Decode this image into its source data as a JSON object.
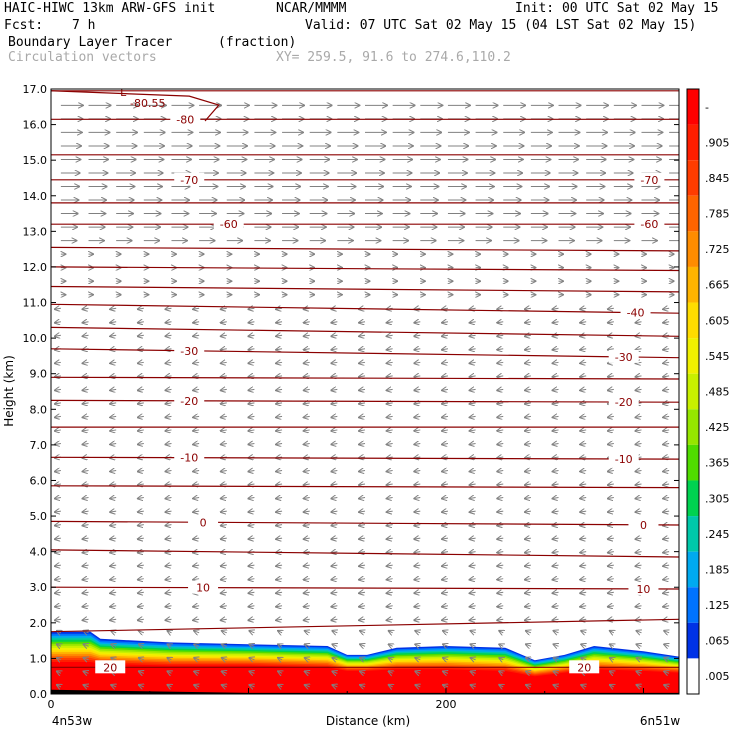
{
  "header": {
    "model": "HAIC-HIWC 13km ARW-GFS init",
    "org": "NCAR/MMMM",
    "init": "Init: 00 UTC Sat 02 May 15",
    "fcst_label": "Fcst:",
    "fcst_value": "7 h",
    "valid": "Valid: 07 UTC Sat 02 May 15 (04 LST Sat 02 May 15)",
    "field": "Boundary Layer Tracer",
    "field_units": "(fraction)",
    "overlay": "Circulation vectors",
    "xy": "XY= 259.5, 91.6 to 274.6,110.2"
  },
  "colors": {
    "contour": "#8b0000",
    "vector": "#808080",
    "overlay_text": "#a9a9a9"
  },
  "chart_data": {
    "type": "heatmap",
    "xlabel": "Distance (km)",
    "ylabel": "Height (km)",
    "xlim": [
      0,
      318
    ],
    "ylim": [
      0,
      17
    ],
    "x_ticks": [
      {
        "value": 0,
        "label": "0"
      },
      {
        "value": 200,
        "label": "200"
      }
    ],
    "x_end_labels": {
      "left": "4n53w",
      "right": "6n51w"
    },
    "y_ticks": [
      "0.0",
      "1.0",
      "2.0",
      "3.0",
      "4.0",
      "5.0",
      "6.0",
      "7.0",
      "8.0",
      "9.0",
      "10.0",
      "11.0",
      "12.0",
      "13.0",
      "14.0",
      "15.0",
      "16.0",
      "17.0"
    ],
    "colorbar": {
      "labels": [
        "-",
        ".905",
        ".845",
        ".785",
        ".725",
        ".665",
        ".605",
        ".545",
        ".485",
        ".425",
        ".365",
        ".305",
        ".245",
        ".185",
        ".125",
        ".065",
        ".005"
      ],
      "colors": [
        "#ff0000",
        "#ff1e00",
        "#ff3c00",
        "#ff6400",
        "#ff8c00",
        "#ffb400",
        "#ffdc00",
        "#f0f000",
        "#c8f000",
        "#96e600",
        "#50dc00",
        "#00d250",
        "#00c8aa",
        "#00aaf0",
        "#0073ff",
        "#0032e6",
        "#ffffff"
      ]
    },
    "tracer_top": [
      {
        "x": 0,
        "top": 1.75,
        "r90": 0.9
      },
      {
        "x": 20,
        "top": 1.75,
        "r90": 0.9
      },
      {
        "x": 25,
        "top": 1.55,
        "r90": 0.85
      },
      {
        "x": 60,
        "top": 1.45,
        "r90": 0.8
      },
      {
        "x": 100,
        "top": 1.4,
        "r90": 0.8
      },
      {
        "x": 140,
        "top": 1.35,
        "r90": 0.75
      },
      {
        "x": 150,
        "top": 1.1,
        "r90": 0.65
      },
      {
        "x": 160,
        "top": 1.1,
        "r90": 0.65
      },
      {
        "x": 175,
        "top": 1.3,
        "r90": 0.7
      },
      {
        "x": 200,
        "top": 1.35,
        "r90": 0.7
      },
      {
        "x": 230,
        "top": 1.3,
        "r90": 0.65
      },
      {
        "x": 245,
        "top": 0.95,
        "r90": 0.5
      },
      {
        "x": 260,
        "top": 1.1,
        "r90": 0.6
      },
      {
        "x": 275,
        "top": 1.35,
        "r90": 0.7
      },
      {
        "x": 300,
        "top": 1.2,
        "r90": 0.65
      },
      {
        "x": 318,
        "top": 1.05,
        "r90": 0.6
      }
    ],
    "contours": [
      {
        "z0": 16.95,
        "z1": 16.95,
        "label": "",
        "lx": []
      },
      {
        "z0": 16.15,
        "z1": 16.15,
        "label": "-80",
        "lx": [
          68
        ]
      },
      {
        "z0": 15.15,
        "z1": 15.15,
        "label": "",
        "lx": []
      },
      {
        "z0": 14.45,
        "z1": 14.45,
        "label": "-70",
        "lx": [
          70,
          303
        ]
      },
      {
        "z0": 13.8,
        "z1": 13.8,
        "label": "",
        "lx": []
      },
      {
        "z0": 13.2,
        "z1": 13.2,
        "label": "-60",
        "lx": [
          90,
          303
        ]
      },
      {
        "z0": 12.55,
        "z1": 12.45,
        "label": "",
        "lx": []
      },
      {
        "z0": 12.0,
        "z1": 11.9,
        "label": "",
        "lx": []
      },
      {
        "z0": 11.45,
        "z1": 11.3,
        "label": "",
        "lx": []
      },
      {
        "z0": 10.95,
        "z1": 10.7,
        "label": "-40",
        "lx": [
          296
        ]
      },
      {
        "z0": 10.3,
        "z1": 10.05,
        "label": "",
        "lx": []
      },
      {
        "z0": 9.7,
        "z1": 9.45,
        "label": "-30",
        "lx": [
          70,
          290
        ]
      },
      {
        "z0": 8.9,
        "z1": 8.85,
        "label": "",
        "lx": []
      },
      {
        "z0": 8.25,
        "z1": 8.2,
        "label": "-20",
        "lx": [
          70,
          290
        ]
      },
      {
        "z0": 7.5,
        "z1": 7.5,
        "label": "",
        "lx": []
      },
      {
        "z0": 6.65,
        "z1": 6.6,
        "label": "-10",
        "lx": [
          70,
          290
        ]
      },
      {
        "z0": 5.85,
        "z1": 5.8,
        "label": "",
        "lx": []
      },
      {
        "z0": 4.85,
        "z1": 4.75,
        "label": "0",
        "lx": [
          77,
          300
        ]
      },
      {
        "z0": 4.05,
        "z1": 3.85,
        "label": "",
        "lx": []
      },
      {
        "z0": 3.0,
        "z1": 2.95,
        "label": "10",
        "lx": [
          77,
          300
        ]
      },
      {
        "z0": 1.75,
        "z1": 2.1,
        "label": "",
        "lx": []
      },
      {
        "z0": 0.75,
        "z1": 0.75,
        "label": "20",
        "lx": [
          30,
          270
        ]
      }
    ],
    "annotations": [
      {
        "text": "L",
        "x": 35,
        "y": 16.8
      },
      {
        "text": "-80.55",
        "x": 40,
        "y": 16.5
      }
    ]
  }
}
